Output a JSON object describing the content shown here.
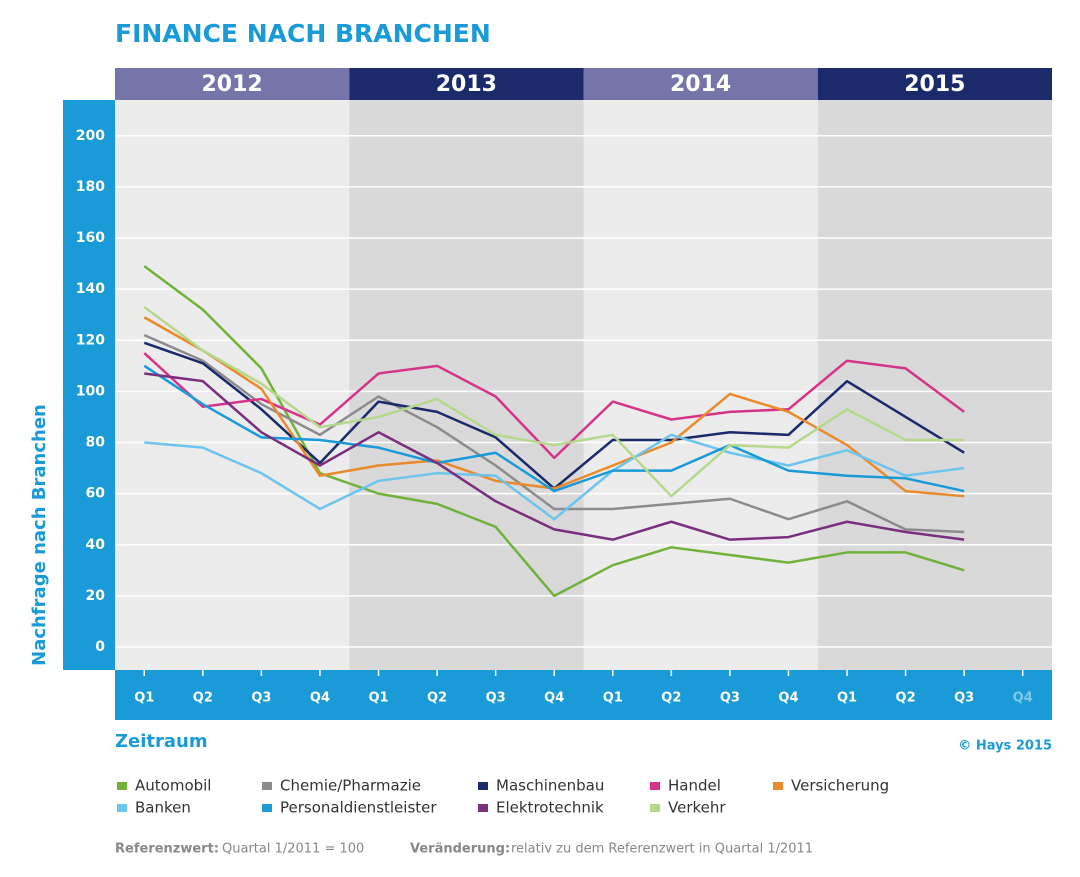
{
  "chart_data": {
    "type": "line",
    "title": "FINANCE NACH BRANCHEN",
    "years": [
      "2012",
      "2013",
      "2014",
      "2015"
    ],
    "year_colors": [
      "#7575a9",
      "#1b2a6b",
      "#7575a9",
      "#1b2a6b"
    ],
    "band_colors": [
      "#ececec",
      "#d9d9d9",
      "#ececec",
      "#d9d9d9"
    ],
    "categories": [
      "Q1",
      "Q2",
      "Q3",
      "Q4",
      "Q1",
      "Q2",
      "Q3",
      "Q4",
      "Q1",
      "Q2",
      "Q3",
      "Q4",
      "Q1",
      "Q2",
      "Q3",
      "Q4"
    ],
    "y_label": "Nachfrage nach Branchen",
    "x_label": "Zeitraum",
    "source": "© Hays 2015",
    "ylim": [
      -9,
      214
    ],
    "yticks": [
      0,
      20,
      40,
      60,
      80,
      100,
      120,
      140,
      160,
      180,
      200
    ],
    "grid": true,
    "series": [
      {
        "name": "Automobil",
        "color": "#6fb33b",
        "values": [
          149,
          132,
          109,
          68,
          60,
          56,
          47,
          20,
          32,
          39,
          36,
          33,
          37,
          37,
          30,
          null
        ]
      },
      {
        "name": "Chemie/Pharmazie",
        "color": "#8c8c8c",
        "values": [
          122,
          112,
          95,
          83,
          98,
          86,
          71,
          54,
          54,
          56,
          58,
          50,
          57,
          46,
          45,
          null
        ]
      },
      {
        "name": "Maschinenbau",
        "color": "#1b2a6b",
        "values": [
          119,
          111,
          93,
          72,
          96,
          92,
          82,
          62,
          81,
          81,
          84,
          83,
          104,
          90,
          76,
          null
        ]
      },
      {
        "name": "Handel",
        "color": "#d6338a",
        "values": [
          115,
          94,
          97,
          87,
          107,
          110,
          98,
          74,
          96,
          89,
          92,
          93,
          112,
          109,
          92,
          null
        ]
      },
      {
        "name": "Versicherung",
        "color": "#ea8a2a",
        "values": [
          129,
          116,
          101,
          67,
          71,
          73,
          65,
          62,
          71,
          80,
          99,
          92,
          79,
          61,
          59,
          null
        ]
      },
      {
        "name": "Banken",
        "color": "#6cc5ee",
        "values": [
          80,
          78,
          68,
          54,
          65,
          68,
          67,
          50,
          69,
          83,
          76,
          71,
          77,
          67,
          70,
          null
        ]
      },
      {
        "name": "Personaldienstleister",
        "color": "#1a9ad6",
        "values": [
          110,
          95,
          82,
          81,
          78,
          72,
          76,
          61,
          69,
          69,
          79,
          69,
          67,
          66,
          61,
          null
        ]
      },
      {
        "name": "Elektrotechnik",
        "color": "#7b2f7f",
        "values": [
          107,
          104,
          84,
          71,
          84,
          72,
          57,
          46,
          42,
          49,
          42,
          43,
          49,
          45,
          42,
          null
        ]
      },
      {
        "name": "Verkehr",
        "color": "#b5d98a",
        "values": [
          133,
          116,
          103,
          86,
          90,
          97,
          83,
          79,
          83,
          59,
          79,
          78,
          93,
          81,
          81,
          null
        ]
      }
    ],
    "notes": [
      {
        "label": "Referenzwert:",
        "text": "Quartal 1/2011 = 100"
      },
      {
        "label": "Veränderung:",
        "text": "relativ zu dem Referenzwert in Quartal 1/2011"
      }
    ]
  }
}
